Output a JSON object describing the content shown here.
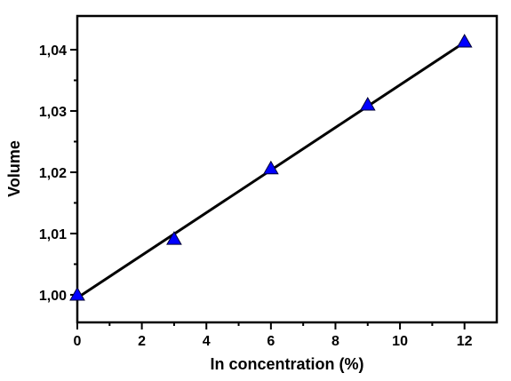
{
  "chart_data": {
    "type": "scatter",
    "title": "",
    "xlabel": "In concentration (%)",
    "ylabel": "Volume",
    "xlim": [
      0,
      13
    ],
    "ylim": [
      0.9955,
      1.0455
    ],
    "xticks": [
      0,
      2,
      4,
      6,
      8,
      10,
      12
    ],
    "yticks": [
      1.0,
      1.01,
      1.02,
      1.03,
      1.04
    ],
    "xtick_labels": [
      "0",
      "2",
      "4",
      "6",
      "8",
      "10",
      "12"
    ],
    "ytick_labels": [
      "1,00",
      "1,01",
      "1,02",
      "1,03",
      "1,04"
    ],
    "grid": false,
    "legend": "none",
    "series": [
      {
        "marker": "triangle",
        "color": "#0000ff",
        "x": [
          0,
          3,
          6,
          9,
          12
        ],
        "y": [
          1.0,
          1.0091,
          1.0206,
          1.031,
          1.0413
        ]
      }
    ],
    "fit_line": {
      "color": "#000000",
      "x": [
        0,
        12
      ],
      "y": [
        0.9995,
        1.0412
      ]
    }
  }
}
